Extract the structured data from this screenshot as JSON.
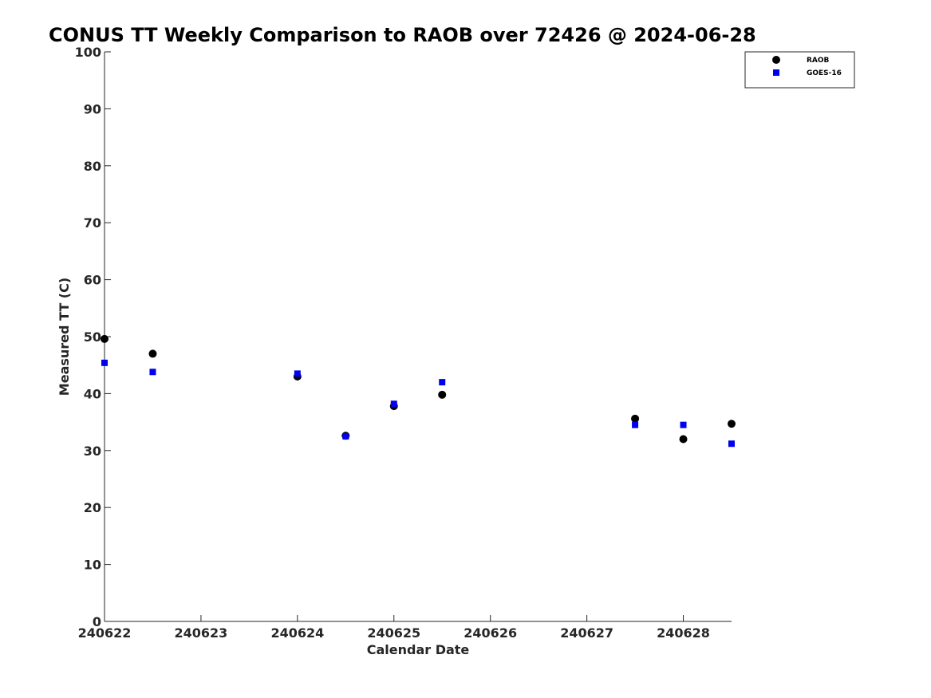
{
  "chart_data": {
    "type": "scatter",
    "title": "CONUS TT Weekly Comparison to RAOB over 72426 @ 2024-06-28",
    "xlabel": "Calendar Date",
    "ylabel": "Measured TT (C)",
    "x_ticks": [
      "240622",
      "240623",
      "240624",
      "240625",
      "240626",
      "240627",
      "240628"
    ],
    "xlim": [
      0,
      6.5
    ],
    "ylim": [
      0,
      100
    ],
    "y_ticks": [
      0,
      10,
      20,
      30,
      40,
      50,
      60,
      70,
      80,
      90,
      100
    ],
    "grid": false,
    "legend_position": "top-right",
    "series": [
      {
        "name": "RAOB",
        "marker": "circle",
        "color": "#000000",
        "x": [
          0,
          0.5,
          2,
          2.5,
          3,
          3.5,
          5.5,
          6,
          6.5
        ],
        "y": [
          49.6,
          47.0,
          43.0,
          32.6,
          37.8,
          39.8,
          35.6,
          32.0,
          34.7
        ]
      },
      {
        "name": "GOES-16",
        "marker": "square",
        "color": "#0000ee",
        "x": [
          0,
          0.5,
          2,
          2.5,
          3,
          3.5,
          5.5,
          6,
          6.5
        ],
        "y": [
          45.4,
          43.8,
          43.5,
          32.5,
          38.2,
          42.0,
          34.5,
          34.5,
          31.2
        ]
      }
    ]
  }
}
